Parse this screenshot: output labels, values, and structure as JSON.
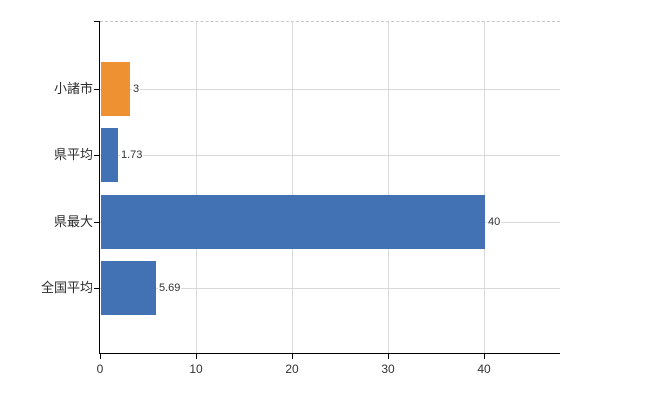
{
  "chart_data": {
    "type": "bar",
    "orientation": "horizontal",
    "title": "",
    "xlabel": "",
    "ylabel": "",
    "categories": [
      "小諸市",
      "県平均",
      "県最大",
      "全国平均"
    ],
    "values": [
      3,
      1.73,
      40,
      5.69
    ],
    "value_labels": [
      "3",
      "1.73",
      "40",
      "5.69"
    ],
    "bar_colors": [
      "#EE9133",
      "#4272B4",
      "#4272B4",
      "#4272B4"
    ],
    "x_ticks": [
      0,
      10,
      20,
      30,
      40
    ],
    "x_tick_labels": [
      "0",
      "10",
      "20",
      "30",
      "40"
    ],
    "xlim": [
      0,
      47.9
    ],
    "grid": true,
    "legend": "none",
    "colors": {
      "grid": "#d9d9d9",
      "axis": "#000000",
      "plot_top_border": "#c6c6c6",
      "background": "#ffffff",
      "bar_blue": "#4272B4",
      "bar_orange": "#EE9133"
    }
  }
}
